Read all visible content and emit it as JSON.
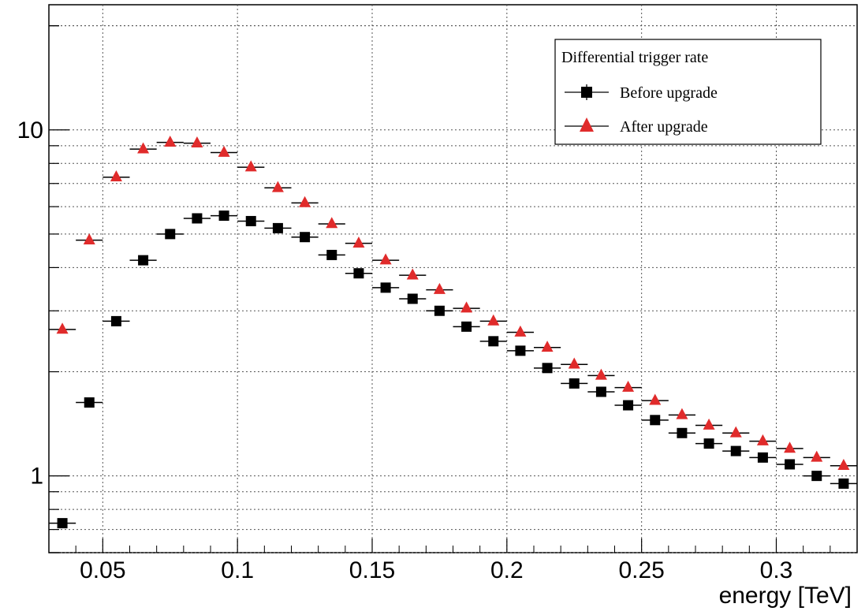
{
  "chart_data": {
    "type": "scatter",
    "xlabel": "energy [TeV]",
    "ylabel": "",
    "xlim": [
      0.03,
      0.33
    ],
    "ylim": [
      0.6,
      23
    ],
    "y_scale": "log",
    "grid": true,
    "x_ticks": [
      0.05,
      0.1,
      0.15,
      0.2,
      0.25,
      0.3
    ],
    "x_tick_labels": [
      "0.05",
      "0.1",
      "0.15",
      "0.2",
      "0.25",
      "0.3"
    ],
    "y_ticks": [
      1,
      10
    ],
    "y_tick_labels": [
      "1",
      "10"
    ],
    "bin_width": 0.01,
    "legend": {
      "title": "Differential trigger rate",
      "placement": "top-right",
      "entries": [
        "Before upgrade",
        "After upgrade"
      ]
    },
    "x": [
      0.035,
      0.045,
      0.055,
      0.065,
      0.075,
      0.085,
      0.095,
      0.105,
      0.115,
      0.125,
      0.135,
      0.145,
      0.155,
      0.165,
      0.175,
      0.185,
      0.195,
      0.205,
      0.215,
      0.225,
      0.235,
      0.245,
      0.255,
      0.265,
      0.275,
      0.285,
      0.295,
      0.305,
      0.315,
      0.325
    ],
    "series": [
      {
        "name": "Before upgrade",
        "marker": "square",
        "color": "#000000",
        "values": [
          0.73,
          1.63,
          2.8,
          4.2,
          5.0,
          5.55,
          5.65,
          5.45,
          5.2,
          4.9,
          4.35,
          3.85,
          3.5,
          3.25,
          3.0,
          2.7,
          2.45,
          2.3,
          2.05,
          1.85,
          1.75,
          1.6,
          1.45,
          1.33,
          1.24,
          1.18,
          1.13,
          1.08,
          1.0,
          0.95
        ]
      },
      {
        "name": "After upgrade",
        "marker": "triangle",
        "color": "#e02b2b",
        "values": [
          2.65,
          4.8,
          7.3,
          8.8,
          9.2,
          9.15,
          8.6,
          7.8,
          6.8,
          6.15,
          5.35,
          4.7,
          4.2,
          3.8,
          3.45,
          3.05,
          2.8,
          2.6,
          2.35,
          2.1,
          1.95,
          1.8,
          1.65,
          1.5,
          1.4,
          1.33,
          1.26,
          1.2,
          1.13,
          1.07
        ]
      }
    ]
  }
}
